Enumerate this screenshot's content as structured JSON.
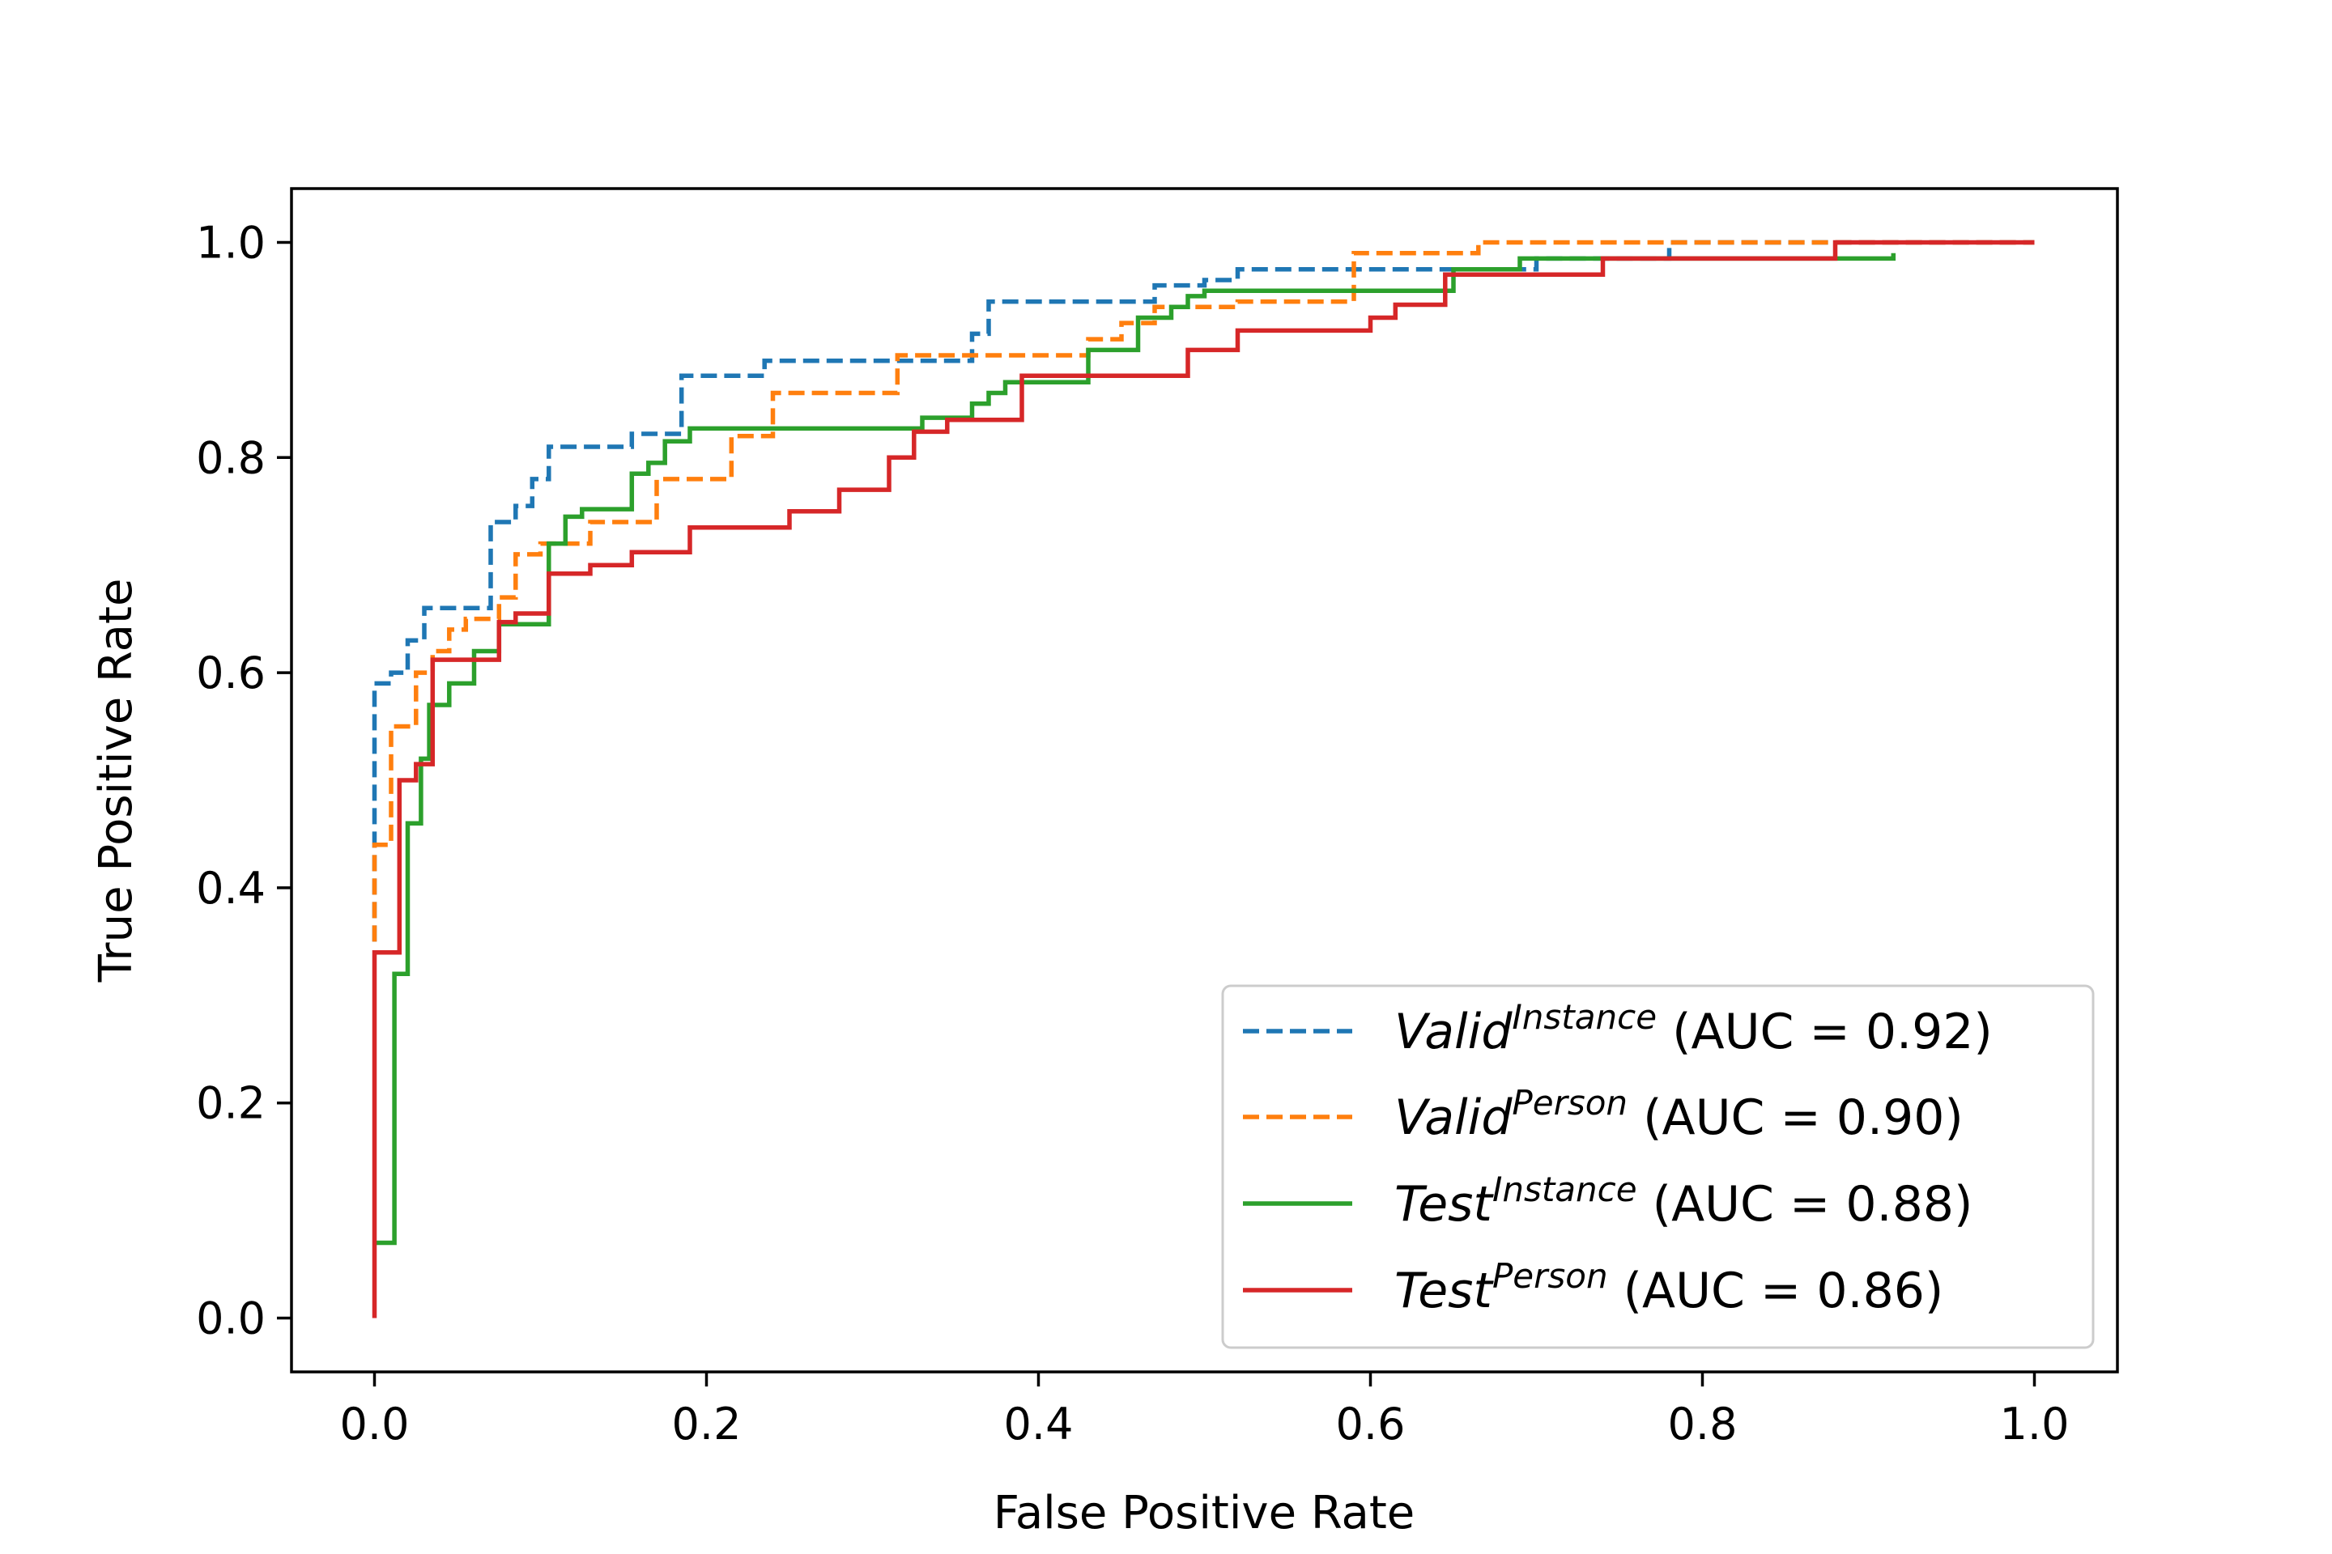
{
  "chart_data": {
    "type": "line",
    "title": "",
    "xlabel": "False Positive Rate",
    "ylabel": "True Positive Rate",
    "xlim": [
      -0.05,
      1.05
    ],
    "ylim": [
      -0.05,
      1.05
    ],
    "xticks": [
      0.0,
      0.2,
      0.4,
      0.6,
      0.8,
      1.0
    ],
    "yticks": [
      0.0,
      0.2,
      0.4,
      0.6,
      0.8,
      1.0
    ],
    "xtick_labels": [
      "0.0",
      "0.2",
      "0.4",
      "0.6",
      "0.8",
      "1.0"
    ],
    "ytick_labels": [
      "0.0",
      "0.2",
      "0.4",
      "0.6",
      "0.8",
      "1.0"
    ],
    "grid": false,
    "legend_position": "bottom-right",
    "series": [
      {
        "name": "Valid",
        "superscript": "Instance",
        "auc_text": "(AUC = 0.92)",
        "color": "#1f77b4",
        "dash": "dashed",
        "points": [
          [
            0,
            0.35
          ],
          [
            0,
            0.59
          ],
          [
            0.01,
            0.59
          ],
          [
            0.01,
            0.6
          ],
          [
            0.02,
            0.6
          ],
          [
            0.02,
            0.63
          ],
          [
            0.03,
            0.63
          ],
          [
            0.03,
            0.66
          ],
          [
            0.07,
            0.66
          ],
          [
            0.07,
            0.74
          ],
          [
            0.085,
            0.74
          ],
          [
            0.085,
            0.755
          ],
          [
            0.095,
            0.755
          ],
          [
            0.095,
            0.78
          ],
          [
            0.105,
            0.78
          ],
          [
            0.105,
            0.81
          ],
          [
            0.155,
            0.81
          ],
          [
            0.155,
            0.822
          ],
          [
            0.185,
            0.822
          ],
          [
            0.185,
            0.876
          ],
          [
            0.235,
            0.876
          ],
          [
            0.235,
            0.89
          ],
          [
            0.36,
            0.89
          ],
          [
            0.36,
            0.915
          ],
          [
            0.37,
            0.915
          ],
          [
            0.37,
            0.945
          ],
          [
            0.47,
            0.945
          ],
          [
            0.47,
            0.96
          ],
          [
            0.5,
            0.96
          ],
          [
            0.5,
            0.965
          ],
          [
            0.52,
            0.965
          ],
          [
            0.52,
            0.975
          ],
          [
            0.7,
            0.975
          ],
          [
            0.7,
            0.985
          ],
          [
            0.78,
            0.985
          ],
          [
            0.78,
            1.0
          ],
          [
            1.0,
            1.0
          ]
        ]
      },
      {
        "name": "Valid",
        "superscript": "Person",
        "auc_text": "(AUC = 0.90)",
        "color": "#ff7f0e",
        "dash": "dashed",
        "points": [
          [
            0,
            0.35
          ],
          [
            0,
            0.44
          ],
          [
            0.01,
            0.44
          ],
          [
            0.01,
            0.55
          ],
          [
            0.025,
            0.55
          ],
          [
            0.025,
            0.6
          ],
          [
            0.035,
            0.6
          ],
          [
            0.035,
            0.62
          ],
          [
            0.045,
            0.62
          ],
          [
            0.045,
            0.64
          ],
          [
            0.055,
            0.64
          ],
          [
            0.055,
            0.65
          ],
          [
            0.075,
            0.65
          ],
          [
            0.075,
            0.67
          ],
          [
            0.085,
            0.67
          ],
          [
            0.085,
            0.71
          ],
          [
            0.1,
            0.71
          ],
          [
            0.1,
            0.72
          ],
          [
            0.13,
            0.72
          ],
          [
            0.13,
            0.74
          ],
          [
            0.17,
            0.74
          ],
          [
            0.17,
            0.78
          ],
          [
            0.215,
            0.78
          ],
          [
            0.215,
            0.82
          ],
          [
            0.24,
            0.82
          ],
          [
            0.24,
            0.86
          ],
          [
            0.315,
            0.86
          ],
          [
            0.315,
            0.895
          ],
          [
            0.43,
            0.895
          ],
          [
            0.43,
            0.91
          ],
          [
            0.45,
            0.91
          ],
          [
            0.45,
            0.925
          ],
          [
            0.47,
            0.925
          ],
          [
            0.47,
            0.94
          ],
          [
            0.52,
            0.94
          ],
          [
            0.52,
            0.945
          ],
          [
            0.59,
            0.945
          ],
          [
            0.59,
            0.99
          ],
          [
            0.665,
            0.99
          ],
          [
            0.665,
            1.0
          ],
          [
            1.0,
            1.0
          ]
        ]
      },
      {
        "name": "Test",
        "superscript": "Instance",
        "auc_text": "(AUC = 0.88)",
        "color": "#2ca02c",
        "dash": "solid",
        "points": [
          [
            0,
            0.07
          ],
          [
            0.012,
            0.07
          ],
          [
            0.012,
            0.32
          ],
          [
            0.02,
            0.32
          ],
          [
            0.02,
            0.46
          ],
          [
            0.028,
            0.46
          ],
          [
            0.028,
            0.52
          ],
          [
            0.033,
            0.52
          ],
          [
            0.033,
            0.57
          ],
          [
            0.045,
            0.57
          ],
          [
            0.045,
            0.59
          ],
          [
            0.06,
            0.59
          ],
          [
            0.06,
            0.62
          ],
          [
            0.075,
            0.62
          ],
          [
            0.075,
            0.645
          ],
          [
            0.105,
            0.645
          ],
          [
            0.105,
            0.72
          ],
          [
            0.115,
            0.72
          ],
          [
            0.115,
            0.745
          ],
          [
            0.125,
            0.745
          ],
          [
            0.125,
            0.752
          ],
          [
            0.155,
            0.752
          ],
          [
            0.155,
            0.785
          ],
          [
            0.165,
            0.785
          ],
          [
            0.165,
            0.795
          ],
          [
            0.175,
            0.795
          ],
          [
            0.175,
            0.815
          ],
          [
            0.19,
            0.815
          ],
          [
            0.19,
            0.827
          ],
          [
            0.33,
            0.827
          ],
          [
            0.33,
            0.837
          ],
          [
            0.36,
            0.837
          ],
          [
            0.36,
            0.85
          ],
          [
            0.37,
            0.85
          ],
          [
            0.37,
            0.86
          ],
          [
            0.38,
            0.86
          ],
          [
            0.38,
            0.87
          ],
          [
            0.43,
            0.87
          ],
          [
            0.43,
            0.9
          ],
          [
            0.46,
            0.9
          ],
          [
            0.46,
            0.93
          ],
          [
            0.48,
            0.93
          ],
          [
            0.48,
            0.94
          ],
          [
            0.49,
            0.94
          ],
          [
            0.49,
            0.95
          ],
          [
            0.5,
            0.95
          ],
          [
            0.5,
            0.955
          ],
          [
            0.65,
            0.955
          ],
          [
            0.65,
            0.975
          ],
          [
            0.69,
            0.975
          ],
          [
            0.69,
            0.985
          ],
          [
            0.915,
            0.985
          ],
          [
            0.915,
            0.99
          ]
        ]
      },
      {
        "name": "Test",
        "superscript": "Person",
        "auc_text": "(AUC = 0.86)",
        "color": "#d62728",
        "dash": "solid",
        "points": [
          [
            0,
            0.0
          ],
          [
            0,
            0.34
          ],
          [
            0.015,
            0.34
          ],
          [
            0.015,
            0.5
          ],
          [
            0.025,
            0.5
          ],
          [
            0.025,
            0.515
          ],
          [
            0.035,
            0.515
          ],
          [
            0.035,
            0.612
          ],
          [
            0.075,
            0.612
          ],
          [
            0.075,
            0.647
          ],
          [
            0.085,
            0.647
          ],
          [
            0.085,
            0.655
          ],
          [
            0.105,
            0.655
          ],
          [
            0.105,
            0.692
          ],
          [
            0.13,
            0.692
          ],
          [
            0.13,
            0.7
          ],
          [
            0.155,
            0.7
          ],
          [
            0.155,
            0.712
          ],
          [
            0.19,
            0.712
          ],
          [
            0.19,
            0.735
          ],
          [
            0.25,
            0.735
          ],
          [
            0.25,
            0.75
          ],
          [
            0.28,
            0.75
          ],
          [
            0.28,
            0.77
          ],
          [
            0.31,
            0.77
          ],
          [
            0.31,
            0.8
          ],
          [
            0.325,
            0.8
          ],
          [
            0.325,
            0.824
          ],
          [
            0.345,
            0.824
          ],
          [
            0.345,
            0.835
          ],
          [
            0.39,
            0.835
          ],
          [
            0.39,
            0.876
          ],
          [
            0.49,
            0.876
          ],
          [
            0.49,
            0.9
          ],
          [
            0.52,
            0.9
          ],
          [
            0.52,
            0.918
          ],
          [
            0.6,
            0.918
          ],
          [
            0.6,
            0.93
          ],
          [
            0.615,
            0.93
          ],
          [
            0.615,
            0.942
          ],
          [
            0.645,
            0.942
          ],
          [
            0.645,
            0.97
          ],
          [
            0.74,
            0.97
          ],
          [
            0.74,
            0.985
          ],
          [
            0.88,
            0.985
          ],
          [
            0.88,
            1.0
          ],
          [
            1.0,
            1.0
          ]
        ]
      }
    ]
  }
}
